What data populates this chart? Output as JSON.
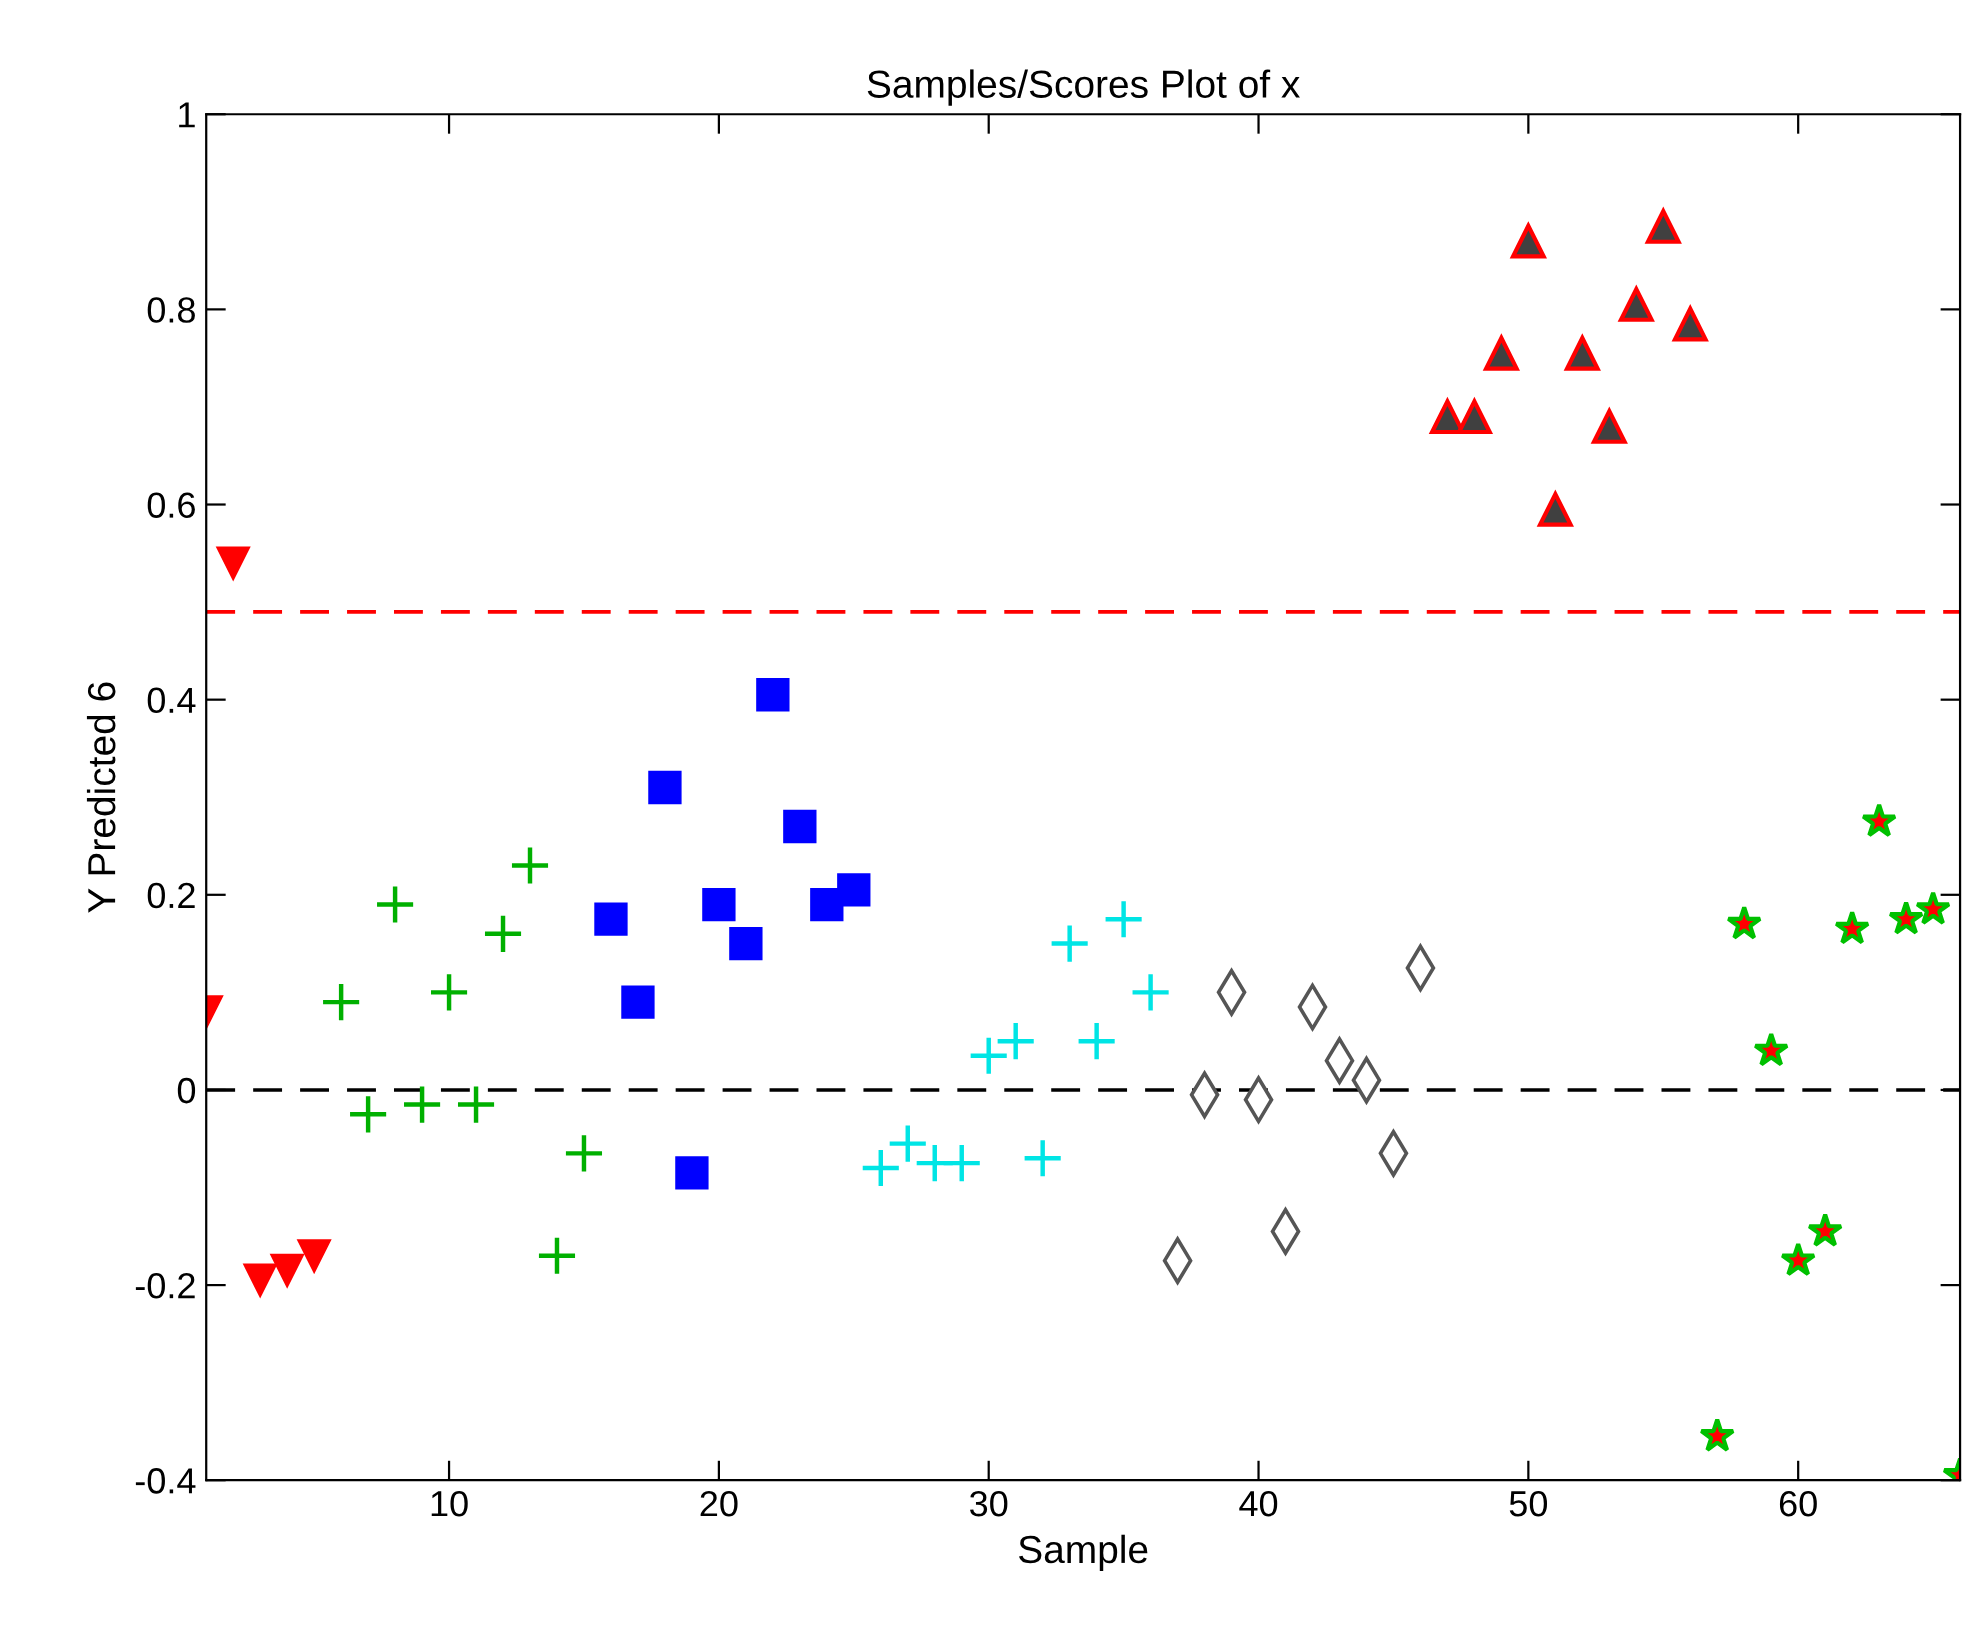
{
  "chart_data": {
    "type": "scatter",
    "title": "Samples/Scores Plot of x",
    "xlabel": "Sample",
    "ylabel": "Y Predicted 6",
    "xlim": [
      1,
      66
    ],
    "xticks": [
      10,
      20,
      30,
      40,
      50,
      60
    ],
    "ylim": [
      -0.4,
      1
    ],
    "yticks": [
      -0.4,
      -0.2,
      0,
      0.2,
      0.4,
      0.6,
      0.8,
      1
    ],
    "grid": false,
    "ref_lines": [
      {
        "axis": "y",
        "value": 0.49,
        "color": "#ff0000",
        "line_style": "dashed"
      },
      {
        "axis": "y",
        "value": 0,
        "color": "#000000",
        "line_style": "dashed"
      }
    ],
    "series": [
      {
        "color": "#ff0000",
        "marker": "triangle_down",
        "x": [
          1,
          2,
          3,
          4,
          5
        ],
        "values": [
          0.08,
          0.54,
          -0.195,
          -0.185,
          -0.17
        ]
      },
      {
        "color": "#00b000",
        "marker": "cross",
        "x": [
          6,
          7,
          8,
          9,
          10,
          11,
          12,
          13,
          14,
          15
        ],
        "values": [
          0.09,
          -0.025,
          0.19,
          -0.015,
          0.1,
          -0.015,
          0.16,
          0.23,
          -0.17,
          -0.065
        ]
      },
      {
        "color": "#0000ff",
        "marker": "square",
        "x": [
          16,
          17,
          18,
          19,
          20,
          21,
          22,
          23,
          24,
          25
        ],
        "values": [
          0.175,
          0.09,
          0.31,
          -0.085,
          0.19,
          0.15,
          0.405,
          0.27,
          0.19,
          0.205
        ]
      },
      {
        "color": "#00e5e5",
        "marker": "cross",
        "x": [
          26,
          27,
          28,
          29,
          30,
          31,
          32,
          33,
          34,
          35,
          36
        ],
        "values": [
          -0.08,
          -0.055,
          -0.075,
          -0.075,
          0.035,
          0.05,
          -0.07,
          0.15,
          0.05,
          0.175,
          0.1
        ]
      },
      {
        "color": "#555555",
        "marker": "diamond",
        "x": [
          37,
          38,
          39,
          40,
          41,
          42,
          43,
          44,
          45,
          46
        ],
        "values": [
          -0.175,
          -0.005,
          0.1,
          -0.01,
          -0.145,
          0.085,
          0.03,
          0.01,
          -0.065,
          0.125
        ]
      },
      {
        "color": "#404040",
        "marker": "triangle",
        "x": [
          47,
          48,
          49,
          50,
          51,
          52,
          53,
          54,
          55,
          56
        ],
        "values": [
          0.69,
          0.69,
          0.755,
          0.87,
          0.595,
          0.755,
          0.68,
          0.805,
          0.885,
          0.785
        ]
      },
      {
        "color": "#ff0000",
        "marker": "star",
        "x": [
          57,
          58,
          59,
          60,
          61,
          62,
          63,
          64,
          65,
          66
        ],
        "values": [
          -0.355,
          0.17,
          0.04,
          -0.175,
          -0.145,
          0.165,
          0.275,
          0.175,
          0.185,
          -0.395
        ]
      }
    ]
  }
}
